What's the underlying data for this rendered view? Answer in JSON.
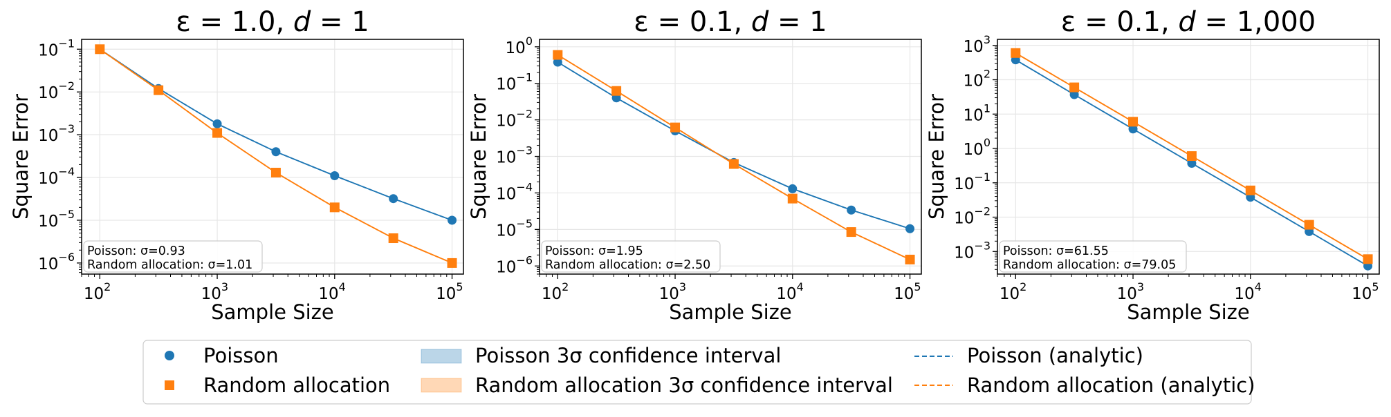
{
  "chart_data": [
    {
      "type": "line",
      "title": {
        "prefix": "ε = 1.0, ",
        "var": "d",
        "suffix": " = 1"
      },
      "xlabel": "Sample Size",
      "ylabel": "Square Error",
      "xscale": "log",
      "yscale": "log",
      "xlim": [
        70,
        125000
      ],
      "ylim": [
        5.5e-07,
        0.17
      ],
      "x_ticks": [
        {
          "base": "10",
          "exp": "2"
        },
        {
          "base": "10",
          "exp": "3"
        },
        {
          "base": "10",
          "exp": "4"
        },
        {
          "base": "10",
          "exp": "5"
        }
      ],
      "y_ticks": [
        {
          "base": "10",
          "exp": "−6"
        },
        {
          "base": "10",
          "exp": "−5"
        },
        {
          "base": "10",
          "exp": "−4"
        },
        {
          "base": "10",
          "exp": "−3"
        },
        {
          "base": "10",
          "exp": "−2"
        },
        {
          "base": "10",
          "exp": "−1"
        }
      ],
      "grid": true,
      "x": [
        100,
        316,
        1000,
        3162,
        10000,
        31623,
        100000
      ],
      "series": [
        {
          "name": "Poisson",
          "color": "#1f77b4",
          "marker": "circle",
          "values": [
            0.1,
            0.012,
            0.0018,
            0.0004,
            0.00011,
            3.2e-05,
            1e-05
          ]
        },
        {
          "name": "Random allocation",
          "color": "#ff7f0e",
          "marker": "square",
          "values": [
            0.1,
            0.011,
            0.0011,
            0.00013,
            2e-05,
            3.8e-06,
            1e-06
          ]
        }
      ],
      "stats": [
        "Poisson: σ=0.93",
        "Random allocation: σ=1.01"
      ]
    },
    {
      "type": "line",
      "title": {
        "prefix": "ε = 0.1, ",
        "var": "d",
        "suffix": " = 1"
      },
      "xlabel": "Sample Size",
      "ylabel": "Square Error",
      "xscale": "log",
      "yscale": "log",
      "xlim": [
        70,
        125000
      ],
      "ylim": [
        6e-07,
        1.6
      ],
      "x_ticks": [
        {
          "base": "10",
          "exp": "2"
        },
        {
          "base": "10",
          "exp": "3"
        },
        {
          "base": "10",
          "exp": "4"
        },
        {
          "base": "10",
          "exp": "5"
        }
      ],
      "y_ticks": [
        {
          "base": "10",
          "exp": "−6"
        },
        {
          "base": "10",
          "exp": "−5"
        },
        {
          "base": "10",
          "exp": "−4"
        },
        {
          "base": "10",
          "exp": "−3"
        },
        {
          "base": "10",
          "exp": "−2"
        },
        {
          "base": "10",
          "exp": "−1"
        },
        {
          "base": "10",
          "exp": "0"
        }
      ],
      "grid": true,
      "x": [
        100,
        316,
        1000,
        3162,
        10000,
        31623,
        100000
      ],
      "series": [
        {
          "name": "Poisson",
          "color": "#1f77b4",
          "marker": "circle",
          "values": [
            0.38,
            0.04,
            0.005,
            0.00068,
            0.00013,
            3.4e-05,
            1.05e-05
          ]
        },
        {
          "name": "Random allocation",
          "color": "#ff7f0e",
          "marker": "square",
          "values": [
            0.6,
            0.062,
            0.0062,
            0.00062,
            7e-05,
            8.5e-06,
            1.5e-06
          ]
        }
      ],
      "stats": [
        "Poisson: σ=1.95",
        "Random allocation: σ=2.50"
      ]
    },
    {
      "type": "line",
      "title": {
        "prefix": "ε = 0.1, ",
        "var": "d",
        "suffix": " = 1,000"
      },
      "xlabel": "Sample Size",
      "ylabel": "Square Error",
      "xscale": "log",
      "yscale": "log",
      "xlim": [
        70,
        125000
      ],
      "ylim": [
        0.00022,
        1500
      ],
      "x_ticks": [
        {
          "base": "10",
          "exp": "2"
        },
        {
          "base": "10",
          "exp": "3"
        },
        {
          "base": "10",
          "exp": "4"
        },
        {
          "base": "10",
          "exp": "5"
        }
      ],
      "y_ticks": [
        {
          "base": "10",
          "exp": "−3"
        },
        {
          "base": "10",
          "exp": "−2"
        },
        {
          "base": "10",
          "exp": "−1"
        },
        {
          "base": "10",
          "exp": "0"
        },
        {
          "base": "10",
          "exp": "1"
        },
        {
          "base": "10",
          "exp": "2"
        },
        {
          "base": "10",
          "exp": "3"
        }
      ],
      "grid": true,
      "x": [
        100,
        316,
        1000,
        3162,
        10000,
        31623,
        100000
      ],
      "series": [
        {
          "name": "Poisson",
          "color": "#1f77b4",
          "marker": "circle",
          "values": [
            380,
            37,
            3.7,
            0.37,
            0.038,
            0.0038,
            0.00038
          ]
        },
        {
          "name": "Random allocation",
          "color": "#ff7f0e",
          "marker": "square",
          "values": [
            600,
            60,
            6.0,
            0.6,
            0.06,
            0.006,
            0.0006
          ]
        }
      ],
      "stats": [
        "Poisson: σ=61.55",
        "Random allocation: σ=79.05"
      ]
    }
  ],
  "legend": {
    "placement": "bottom-center",
    "items": [
      {
        "label": "Poisson",
        "kind": "marker-circle",
        "color": "#1f77b4"
      },
      {
        "label": "Random allocation",
        "kind": "marker-square",
        "color": "#ff7f0e"
      },
      {
        "label": "Poisson 3σ confidence interval",
        "kind": "patch",
        "color": "#1f77b4"
      },
      {
        "label": "Random allocation 3σ confidence interval",
        "kind": "patch",
        "color": "#ff7f0e"
      },
      {
        "label": "Poisson (analytic)",
        "kind": "dashed",
        "color": "#1f77b4"
      },
      {
        "label": "Random allocation (analytic)",
        "kind": "dashed",
        "color": "#ff7f0e"
      }
    ]
  }
}
